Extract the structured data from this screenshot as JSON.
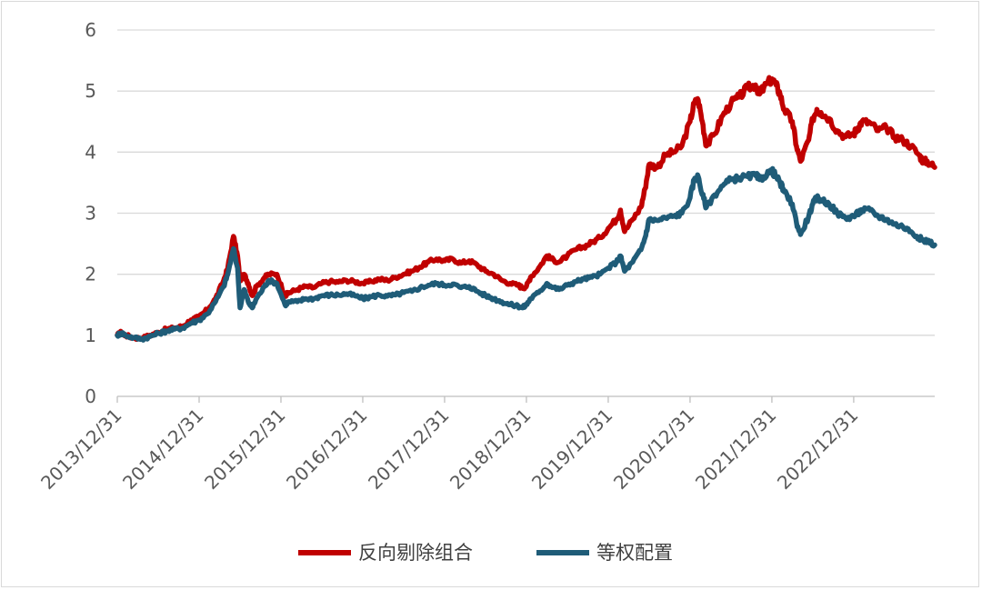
{
  "chart_data": {
    "type": "line",
    "title": "",
    "xlabel": "",
    "ylabel": "",
    "ylim": [
      0,
      6
    ],
    "yticks": [
      "0",
      "1",
      "2",
      "3",
      "4",
      "5",
      "6"
    ],
    "x_tick_labels": [
      "2013/12/31",
      "2014/12/31",
      "2015/12/31",
      "2016/12/31",
      "2017/12/31",
      "2018/12/31",
      "2019/12/31",
      "2020/12/31",
      "2021/12/31",
      "2022/12/31"
    ],
    "x_start": 2014.0,
    "x_end": 2023.99,
    "grid": true,
    "legend_position": "bottom",
    "series": [
      {
        "name": "反向剔除组合",
        "color": "#c00000",
        "points": [
          [
            2014.0,
            1.0
          ],
          [
            2014.05,
            1.05
          ],
          [
            2014.1,
            1.0
          ],
          [
            2014.2,
            0.96
          ],
          [
            2014.3,
            0.95
          ],
          [
            2014.4,
            1.0
          ],
          [
            2014.5,
            1.05
          ],
          [
            2014.6,
            1.1
          ],
          [
            2014.7,
            1.12
          ],
          [
            2014.8,
            1.15
          ],
          [
            2014.9,
            1.25
          ],
          [
            2015.0,
            1.3
          ],
          [
            2015.1,
            1.42
          ],
          [
            2015.2,
            1.6
          ],
          [
            2015.3,
            1.9
          ],
          [
            2015.35,
            2.1
          ],
          [
            2015.42,
            2.62
          ],
          [
            2015.47,
            2.3
          ],
          [
            2015.5,
            1.9
          ],
          [
            2015.55,
            2.0
          ],
          [
            2015.6,
            1.85
          ],
          [
            2015.65,
            1.65
          ],
          [
            2015.7,
            1.8
          ],
          [
            2015.8,
            1.95
          ],
          [
            2015.85,
            2.0
          ],
          [
            2015.95,
            2.0
          ],
          [
            2016.05,
            1.65
          ],
          [
            2016.1,
            1.7
          ],
          [
            2016.2,
            1.75
          ],
          [
            2016.3,
            1.8
          ],
          [
            2016.4,
            1.78
          ],
          [
            2016.5,
            1.85
          ],
          [
            2016.6,
            1.88
          ],
          [
            2016.7,
            1.87
          ],
          [
            2016.8,
            1.9
          ],
          [
            2016.9,
            1.88
          ],
          [
            2017.0,
            1.85
          ],
          [
            2017.1,
            1.88
          ],
          [
            2017.2,
            1.92
          ],
          [
            2017.3,
            1.9
          ],
          [
            2017.4,
            1.95
          ],
          [
            2017.5,
            2.0
          ],
          [
            2017.6,
            2.05
          ],
          [
            2017.7,
            2.12
          ],
          [
            2017.8,
            2.2
          ],
          [
            2017.9,
            2.25
          ],
          [
            2018.0,
            2.22
          ],
          [
            2018.1,
            2.25
          ],
          [
            2018.2,
            2.18
          ],
          [
            2018.3,
            2.22
          ],
          [
            2018.4,
            2.15
          ],
          [
            2018.5,
            2.05
          ],
          [
            2018.6,
            2.0
          ],
          [
            2018.7,
            1.9
          ],
          [
            2018.8,
            1.85
          ],
          [
            2018.9,
            1.82
          ],
          [
            2018.95,
            1.78
          ],
          [
            2019.0,
            1.8
          ],
          [
            2019.05,
            1.95
          ],
          [
            2019.15,
            2.1
          ],
          [
            2019.25,
            2.3
          ],
          [
            2019.3,
            2.25
          ],
          [
            2019.4,
            2.2
          ],
          [
            2019.5,
            2.3
          ],
          [
            2019.6,
            2.4
          ],
          [
            2019.7,
            2.45
          ],
          [
            2019.8,
            2.52
          ],
          [
            2019.9,
            2.6
          ],
          [
            2020.0,
            2.75
          ],
          [
            2020.1,
            2.9
          ],
          [
            2020.15,
            3.05
          ],
          [
            2020.2,
            2.7
          ],
          [
            2020.3,
            2.9
          ],
          [
            2020.4,
            3.1
          ],
          [
            2020.45,
            3.4
          ],
          [
            2020.5,
            3.8
          ],
          [
            2020.6,
            3.75
          ],
          [
            2020.7,
            3.95
          ],
          [
            2020.8,
            4.0
          ],
          [
            2020.9,
            4.1
          ],
          [
            2021.0,
            4.5
          ],
          [
            2021.05,
            4.8
          ],
          [
            2021.1,
            4.85
          ],
          [
            2021.15,
            4.5
          ],
          [
            2021.2,
            4.1
          ],
          [
            2021.3,
            4.3
          ],
          [
            2021.4,
            4.6
          ],
          [
            2021.5,
            4.8
          ],
          [
            2021.6,
            4.9
          ],
          [
            2021.7,
            5.05
          ],
          [
            2021.8,
            5.1
          ],
          [
            2021.85,
            4.95
          ],
          [
            2021.9,
            5.05
          ],
          [
            2022.0,
            5.2
          ],
          [
            2022.05,
            5.1
          ],
          [
            2022.1,
            4.95
          ],
          [
            2022.15,
            4.7
          ],
          [
            2022.25,
            4.5
          ],
          [
            2022.3,
            4.1
          ],
          [
            2022.35,
            3.85
          ],
          [
            2022.45,
            4.2
          ],
          [
            2022.5,
            4.55
          ],
          [
            2022.55,
            4.7
          ],
          [
            2022.6,
            4.65
          ],
          [
            2022.7,
            4.55
          ],
          [
            2022.8,
            4.35
          ],
          [
            2022.9,
            4.25
          ],
          [
            2023.0,
            4.3
          ],
          [
            2023.05,
            4.4
          ],
          [
            2023.1,
            4.5
          ],
          [
            2023.2,
            4.48
          ],
          [
            2023.3,
            4.35
          ],
          [
            2023.4,
            4.4
          ],
          [
            2023.5,
            4.25
          ],
          [
            2023.6,
            4.2
          ],
          [
            2023.7,
            4.1
          ],
          [
            2023.8,
            3.95
          ],
          [
            2023.85,
            3.85
          ],
          [
            2023.9,
            3.85
          ],
          [
            2023.99,
            3.75
          ]
        ]
      },
      {
        "name": "等权配置",
        "color": "#1f5c78",
        "points": [
          [
            2014.0,
            1.0
          ],
          [
            2014.05,
            1.04
          ],
          [
            2014.1,
            1.0
          ],
          [
            2014.2,
            0.96
          ],
          [
            2014.3,
            0.94
          ],
          [
            2014.4,
            0.98
          ],
          [
            2014.5,
            1.03
          ],
          [
            2014.6,
            1.07
          ],
          [
            2014.7,
            1.1
          ],
          [
            2014.8,
            1.12
          ],
          [
            2014.9,
            1.2
          ],
          [
            2015.0,
            1.25
          ],
          [
            2015.1,
            1.35
          ],
          [
            2015.2,
            1.55
          ],
          [
            2015.3,
            1.8
          ],
          [
            2015.35,
            2.0
          ],
          [
            2015.42,
            2.42
          ],
          [
            2015.47,
            2.1
          ],
          [
            2015.5,
            1.45
          ],
          [
            2015.55,
            1.75
          ],
          [
            2015.6,
            1.55
          ],
          [
            2015.65,
            1.45
          ],
          [
            2015.7,
            1.6
          ],
          [
            2015.8,
            1.8
          ],
          [
            2015.85,
            1.9
          ],
          [
            2015.95,
            1.85
          ],
          [
            2016.05,
            1.5
          ],
          [
            2016.1,
            1.55
          ],
          [
            2016.2,
            1.55
          ],
          [
            2016.3,
            1.6
          ],
          [
            2016.4,
            1.6
          ],
          [
            2016.5,
            1.65
          ],
          [
            2016.6,
            1.66
          ],
          [
            2016.7,
            1.66
          ],
          [
            2016.8,
            1.68
          ],
          [
            2016.9,
            1.65
          ],
          [
            2017.0,
            1.6
          ],
          [
            2017.1,
            1.63
          ],
          [
            2017.2,
            1.66
          ],
          [
            2017.3,
            1.64
          ],
          [
            2017.4,
            1.66
          ],
          [
            2017.5,
            1.7
          ],
          [
            2017.6,
            1.72
          ],
          [
            2017.7,
            1.78
          ],
          [
            2017.8,
            1.82
          ],
          [
            2017.9,
            1.85
          ],
          [
            2018.0,
            1.82
          ],
          [
            2018.1,
            1.84
          ],
          [
            2018.2,
            1.78
          ],
          [
            2018.3,
            1.8
          ],
          [
            2018.4,
            1.72
          ],
          [
            2018.5,
            1.65
          ],
          [
            2018.6,
            1.6
          ],
          [
            2018.7,
            1.55
          ],
          [
            2018.8,
            1.5
          ],
          [
            2018.9,
            1.48
          ],
          [
            2018.95,
            1.45
          ],
          [
            2019.0,
            1.5
          ],
          [
            2019.05,
            1.6
          ],
          [
            2019.15,
            1.7
          ],
          [
            2019.25,
            1.85
          ],
          [
            2019.3,
            1.8
          ],
          [
            2019.4,
            1.75
          ],
          [
            2019.5,
            1.82
          ],
          [
            2019.6,
            1.88
          ],
          [
            2019.7,
            1.92
          ],
          [
            2019.8,
            1.95
          ],
          [
            2019.9,
            2.0
          ],
          [
            2020.0,
            2.1
          ],
          [
            2020.1,
            2.2
          ],
          [
            2020.15,
            2.3
          ],
          [
            2020.2,
            2.05
          ],
          [
            2020.3,
            2.2
          ],
          [
            2020.4,
            2.4
          ],
          [
            2020.45,
            2.6
          ],
          [
            2020.5,
            2.9
          ],
          [
            2020.6,
            2.88
          ],
          [
            2020.7,
            2.92
          ],
          [
            2020.8,
            2.95
          ],
          [
            2020.9,
            3.0
          ],
          [
            2021.0,
            3.25
          ],
          [
            2021.05,
            3.55
          ],
          [
            2021.1,
            3.6
          ],
          [
            2021.15,
            3.3
          ],
          [
            2021.2,
            3.1
          ],
          [
            2021.3,
            3.3
          ],
          [
            2021.4,
            3.45
          ],
          [
            2021.5,
            3.55
          ],
          [
            2021.6,
            3.58
          ],
          [
            2021.7,
            3.6
          ],
          [
            2021.8,
            3.62
          ],
          [
            2021.85,
            3.55
          ],
          [
            2021.9,
            3.6
          ],
          [
            2022.0,
            3.7
          ],
          [
            2022.05,
            3.6
          ],
          [
            2022.1,
            3.5
          ],
          [
            2022.15,
            3.35
          ],
          [
            2022.25,
            3.15
          ],
          [
            2022.3,
            2.85
          ],
          [
            2022.35,
            2.65
          ],
          [
            2022.45,
            2.95
          ],
          [
            2022.5,
            3.15
          ],
          [
            2022.55,
            3.25
          ],
          [
            2022.6,
            3.22
          ],
          [
            2022.7,
            3.15
          ],
          [
            2022.8,
            3.0
          ],
          [
            2022.9,
            2.92
          ],
          [
            2023.0,
            2.95
          ],
          [
            2023.05,
            3.0
          ],
          [
            2023.1,
            3.05
          ],
          [
            2023.2,
            3.05
          ],
          [
            2023.3,
            2.95
          ],
          [
            2023.4,
            2.9
          ],
          [
            2023.5,
            2.82
          ],
          [
            2023.6,
            2.78
          ],
          [
            2023.7,
            2.7
          ],
          [
            2023.8,
            2.6
          ],
          [
            2023.85,
            2.55
          ],
          [
            2023.9,
            2.55
          ],
          [
            2023.99,
            2.48
          ]
        ]
      }
    ]
  }
}
